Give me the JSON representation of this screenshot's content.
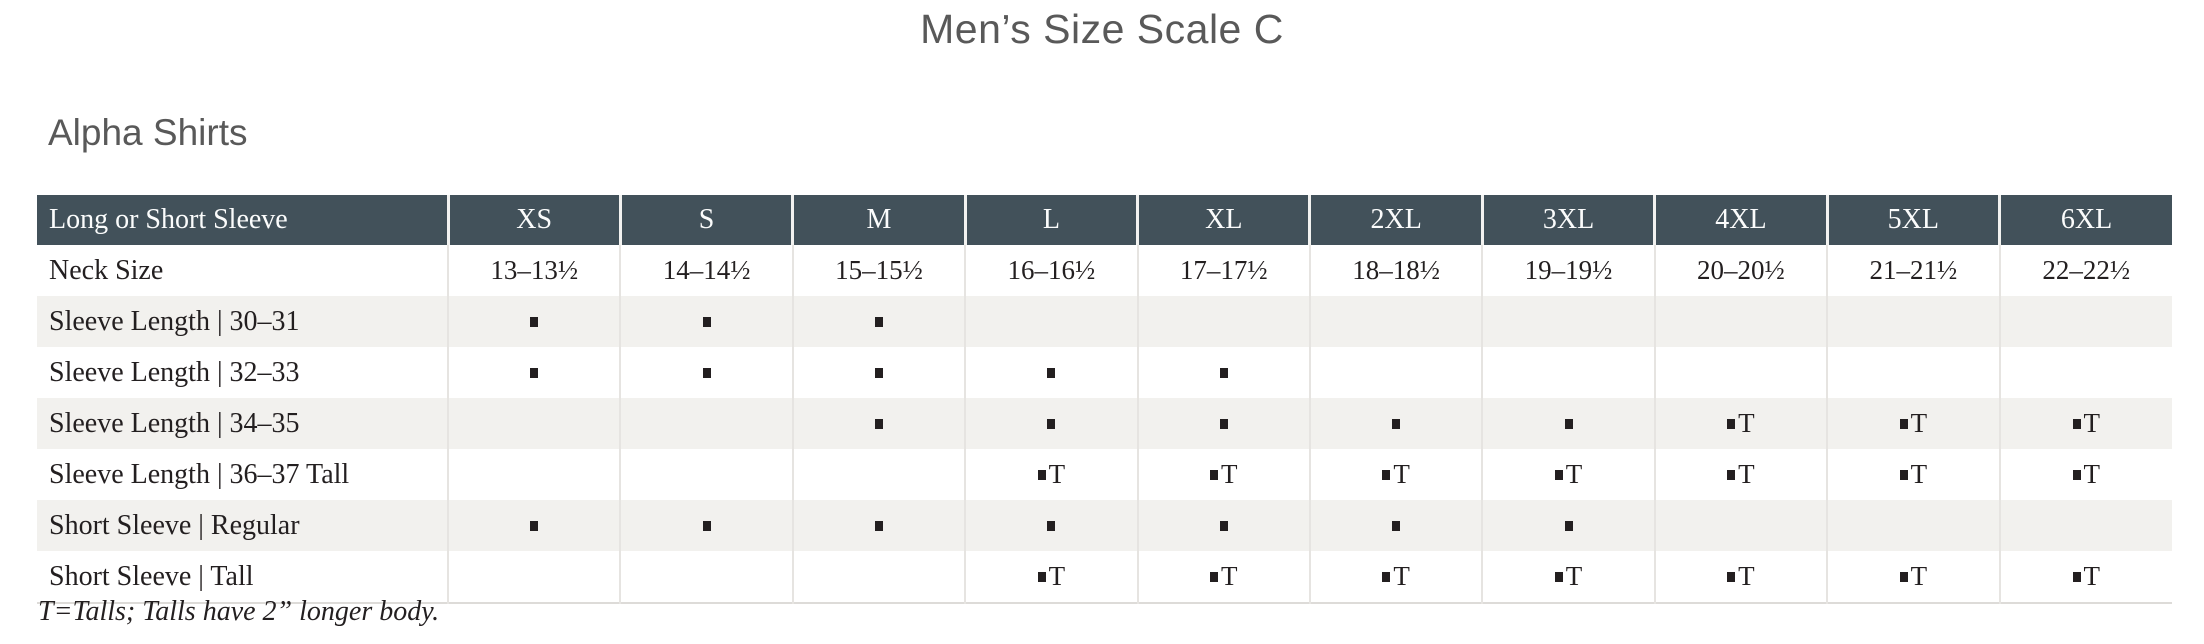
{
  "page": {
    "title": "Men’s Size Scale C",
    "section_title": "Alpha Shirts",
    "footnote": "T=Talls; Talls have 2” longer body."
  },
  "colors": {
    "header_bg": "#42515a",
    "header_text": "#fbfcfc",
    "stripe_bg": "#f2f1ee",
    "gridline": "#e6e4e1",
    "body_text": "#231f20",
    "heading_text": "#595959"
  },
  "table": {
    "corner_label": "Long or Short Sleeve",
    "size_headers": [
      "XS",
      "S",
      "M",
      "L",
      "XL",
      "2XL",
      "3XL",
      "4XL",
      "5XL",
      "6XL"
    ],
    "mark_glyphs": {
      "dot": "small-black-square-icon",
      "dot-T": "small-black-square-icon + T"
    },
    "rows": [
      {
        "label": "Neck Size",
        "cell_type": "text",
        "cells": [
          "13–13½",
          "14–14½",
          "15–15½",
          "16–16½",
          "17–17½",
          "18–18½",
          "19–19½",
          "20–20½",
          "21–21½",
          "22–22½"
        ]
      },
      {
        "label": "Sleeve Length | 30–31",
        "cell_type": "mark",
        "cells": [
          "dot",
          "dot",
          "dot",
          "",
          "",
          "",
          "",
          "",
          "",
          ""
        ]
      },
      {
        "label": "Sleeve Length | 32–33",
        "cell_type": "mark",
        "cells": [
          "dot",
          "dot",
          "dot",
          "dot",
          "dot",
          "",
          "",
          "",
          "",
          ""
        ]
      },
      {
        "label": "Sleeve Length | 34–35",
        "cell_type": "mark",
        "cells": [
          "",
          "",
          "dot",
          "dot",
          "dot",
          "dot",
          "dot",
          "dot-T",
          "dot-T",
          "dot-T"
        ]
      },
      {
        "label": "Sleeve Length | 36–37 Tall",
        "cell_type": "mark",
        "cells": [
          "",
          "",
          "",
          "dot-T",
          "dot-T",
          "dot-T",
          "dot-T",
          "dot-T",
          "dot-T",
          "dot-T"
        ]
      },
      {
        "label": "Short Sleeve | Regular",
        "cell_type": "mark",
        "cells": [
          "dot",
          "dot",
          "dot",
          "dot",
          "dot",
          "dot",
          "dot",
          "",
          "",
          ""
        ]
      },
      {
        "label": "Short Sleeve | Tall",
        "cell_type": "mark",
        "cells": [
          "",
          "",
          "",
          "dot-T",
          "dot-T",
          "dot-T",
          "dot-T",
          "dot-T",
          "dot-T",
          "dot-T"
        ]
      }
    ]
  }
}
